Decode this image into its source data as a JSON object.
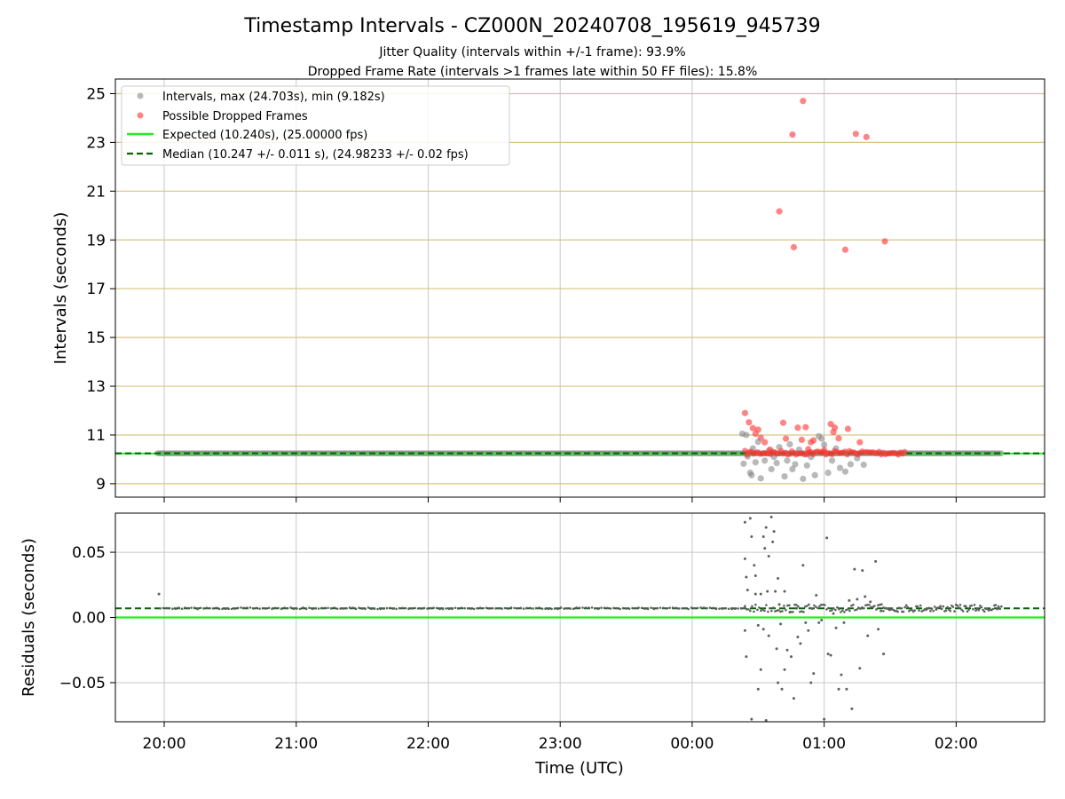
{
  "chart_data": {
    "title": "Timestamp Intervals - CZ000N_20240708_195619_945739",
    "subtitle_lines": [
      "Jitter Quality (intervals within +/-1 frame): 93.9%",
      "Dropped Frame Rate (intervals >1 frames late within 50 FF files): 15.8%"
    ],
    "xlabel": "Time (UTC)",
    "x_ticks": [
      "20:00",
      "21:00",
      "22:00",
      "23:00",
      "00:00",
      "01:00",
      "02:00"
    ],
    "x_range_hours": [
      19.63,
      26.67
    ],
    "panels": [
      {
        "type": "scatter",
        "ylabel": "Intervals (seconds)",
        "ylim": [
          8.45,
          25.6
        ],
        "y_ticks": [
          9,
          11,
          13,
          15,
          17,
          19,
          21,
          23,
          25
        ],
        "grid": true,
        "legend_position": "top-left",
        "legend": [
          "Intervals, max (24.703s), min (9.182s)",
          "Possible Dropped Frames",
          "Expected (10.240s), (25.00000 fps)",
          "Median (10.247 +/- 0.011 s), (24.98233 +/- 0.02 fps)"
        ],
        "expected": 10.24,
        "median": 10.247,
        "intervals_dense_range_hours": [
          19.95,
          26.35
        ],
        "intervals_dense_value": 10.247,
        "intervals_scatter": [
          [
            24.38,
            11.05
          ],
          [
            24.39,
            9.82
          ],
          [
            24.42,
            10.12
          ],
          [
            24.44,
            9.45
          ],
          [
            24.46,
            10.45
          ],
          [
            24.48,
            9.88
          ],
          [
            24.5,
            10.72
          ],
          [
            24.52,
            9.22
          ],
          [
            24.55,
            9.95
          ],
          [
            24.58,
            10.35
          ],
          [
            24.6,
            9.6
          ],
          [
            24.62,
            10.1
          ],
          [
            24.64,
            9.85
          ],
          [
            24.66,
            10.5
          ],
          [
            24.7,
            9.3
          ],
          [
            24.72,
            9.95
          ],
          [
            24.74,
            10.62
          ],
          [
            24.76,
            9.6
          ],
          [
            24.78,
            9.8
          ],
          [
            24.81,
            10.4
          ],
          [
            24.84,
            9.2
          ],
          [
            24.87,
            9.75
          ],
          [
            24.9,
            10.1
          ],
          [
            24.93,
            9.35
          ],
          [
            24.96,
            10.95
          ],
          [
            24.98,
            10.85
          ],
          [
            25.0,
            10.6
          ],
          [
            25.03,
            9.45
          ],
          [
            25.06,
            9.95
          ],
          [
            25.09,
            10.45
          ],
          [
            25.12,
            9.65
          ],
          [
            25.16,
            9.5
          ],
          [
            25.2,
            9.8
          ],
          [
            25.25,
            10.05
          ],
          [
            25.3,
            9.78
          ],
          [
            24.41,
            11.0
          ],
          [
            24.45,
            9.35
          ]
        ],
        "dropped_dense_range_hours": [
          24.4,
          25.62
        ],
        "dropped_dense_value": 10.27,
        "dropped_frames": [
          [
            24.84,
            24.7
          ],
          [
            24.76,
            23.32
          ],
          [
            25.24,
            23.35
          ],
          [
            25.32,
            23.22
          ],
          [
            24.66,
            20.17
          ],
          [
            24.77,
            18.7
          ],
          [
            25.16,
            18.6
          ],
          [
            25.46,
            18.94
          ],
          [
            24.4,
            11.9
          ],
          [
            24.43,
            11.52
          ],
          [
            24.46,
            11.28
          ],
          [
            24.48,
            11.05
          ],
          [
            24.5,
            11.22
          ],
          [
            24.52,
            10.88
          ],
          [
            24.55,
            10.7
          ],
          [
            24.69,
            11.5
          ],
          [
            24.71,
            10.85
          ],
          [
            24.8,
            11.3
          ],
          [
            24.83,
            10.8
          ],
          [
            24.86,
            11.32
          ],
          [
            24.9,
            10.7
          ],
          [
            24.92,
            10.78
          ],
          [
            25.05,
            11.45
          ],
          [
            25.07,
            11.12
          ],
          [
            25.08,
            11.3
          ],
          [
            25.11,
            10.86
          ],
          [
            25.18,
            11.25
          ],
          [
            25.27,
            10.7
          ],
          [
            24.59,
            10.4
          ],
          [
            24.88,
            10.42
          ],
          [
            25.0,
            10.38
          ]
        ]
      },
      {
        "type": "scatter",
        "ylabel": "Residuals (seconds)",
        "ylim": [
          -0.08,
          0.08
        ],
        "y_ticks": [
          0.05,
          0.0,
          -0.05
        ],
        "y_tick_labels": [
          "0.05",
          "0.00",
          "−0.05"
        ],
        "grid": true,
        "expected_line": 0.0,
        "median_line": 0.007,
        "baseline_range_hours": [
          19.97,
          24.4
        ],
        "baseline_value": 0.007,
        "baseline_outlier": [
          19.96,
          0.018
        ],
        "tail_range_hours": [
          25.45,
          26.35
        ],
        "tail_value": 0.007,
        "scatter": [
          [
            24.4,
            0.073
          ],
          [
            24.4,
            0.045
          ],
          [
            24.41,
            0.031
          ],
          [
            24.42,
            0.021
          ],
          [
            24.4,
            -0.01
          ],
          [
            24.41,
            -0.03
          ],
          [
            24.44,
            0.076
          ],
          [
            24.45,
            0.062
          ],
          [
            24.47,
            0.04
          ],
          [
            24.48,
            0.018
          ],
          [
            24.5,
            -0.006
          ],
          [
            24.52,
            -0.04
          ],
          [
            24.54,
            0.062
          ],
          [
            24.55,
            0.053
          ],
          [
            24.56,
            0.069
          ],
          [
            24.57,
            0.02
          ],
          [
            24.58,
            -0.014
          ],
          [
            24.6,
            0.077
          ],
          [
            24.61,
            0.058
          ],
          [
            24.62,
            0.066
          ],
          [
            24.63,
            0.02
          ],
          [
            24.64,
            -0.024
          ],
          [
            24.65,
            0.03
          ],
          [
            24.66,
            0.01
          ],
          [
            24.67,
            -0.005
          ],
          [
            24.68,
            -0.055
          ],
          [
            24.7,
            0.02
          ],
          [
            24.72,
            -0.025
          ],
          [
            24.74,
            0.004
          ],
          [
            24.75,
            -0.03
          ],
          [
            24.77,
            -0.062
          ],
          [
            24.79,
            0.007
          ],
          [
            24.8,
            -0.015
          ],
          [
            24.82,
            -0.02
          ],
          [
            24.84,
            0.04
          ],
          [
            24.86,
            -0.004
          ],
          [
            24.88,
            -0.01
          ],
          [
            24.9,
            -0.05
          ],
          [
            24.92,
            -0.043
          ],
          [
            24.94,
            0.017
          ],
          [
            24.96,
            -0.004
          ],
          [
            24.98,
            -0.002
          ],
          [
            25.0,
            -0.078
          ],
          [
            25.02,
            0.061
          ],
          [
            25.03,
            -0.028
          ],
          [
            25.05,
            -0.029
          ],
          [
            25.07,
            0.003
          ],
          [
            25.09,
            -0.008
          ],
          [
            25.11,
            -0.055
          ],
          [
            25.13,
            -0.044
          ],
          [
            25.15,
            -0.004
          ],
          [
            25.17,
            -0.055
          ],
          [
            25.19,
            0.013
          ],
          [
            25.21,
            -0.07
          ],
          [
            25.23,
            0.037
          ],
          [
            25.25,
            0.014
          ],
          [
            25.27,
            -0.039
          ],
          [
            25.29,
            0.036
          ],
          [
            25.31,
            0.016
          ],
          [
            25.33,
            -0.014
          ],
          [
            25.35,
            0.012
          ],
          [
            25.37,
            0.008
          ],
          [
            25.39,
            0.043
          ],
          [
            25.41,
            -0.009
          ],
          [
            25.43,
            0.005
          ],
          [
            25.45,
            -0.028
          ],
          [
            24.45,
            -0.078
          ],
          [
            24.56,
            -0.079
          ],
          [
            24.7,
            -0.04
          ],
          [
            24.65,
            -0.05
          ],
          [
            24.5,
            -0.055
          ],
          [
            24.48,
            0.032
          ],
          [
            24.52,
            0.018
          ],
          [
            24.54,
            -0.009
          ],
          [
            24.58,
            0.047
          ]
        ]
      }
    ]
  },
  "colors": {
    "intervals": "#808080",
    "dropped": "#ff3333",
    "expected": "#22ee22",
    "median": "#006400",
    "h_grid_top": "#d9c486",
    "grid": "#c8c8c8",
    "axis": "#000000"
  }
}
